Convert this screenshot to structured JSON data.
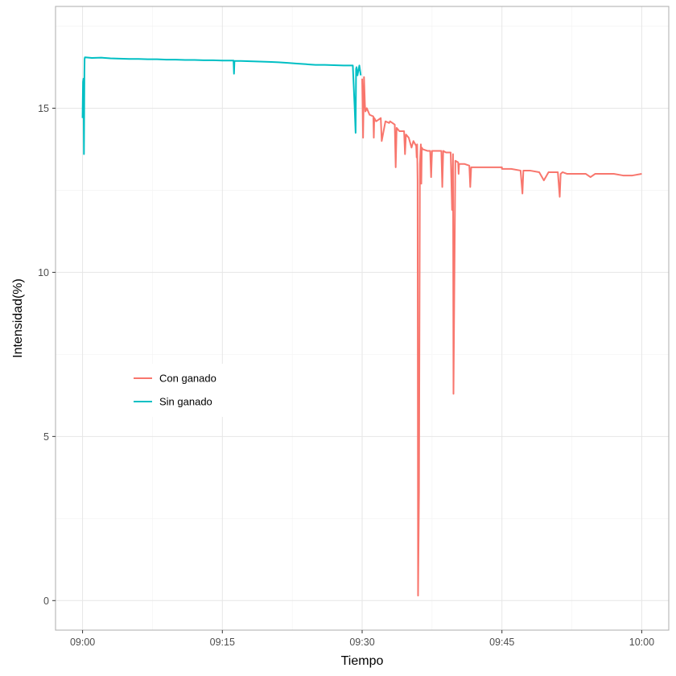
{
  "chart_data": {
    "type": "line",
    "xlabel": "Tiempo",
    "ylabel": "Intensidad(%)",
    "x_ticks": [
      "09:00",
      "09:15",
      "09:30",
      "09:45",
      "10:00"
    ],
    "x_tick_minutes": [
      0,
      15,
      30,
      45,
      60
    ],
    "xlim_minutes": [
      -2.9,
      62.9
    ],
    "y_ticks": [
      0,
      5,
      10,
      15
    ],
    "ylim": [
      -0.9,
      18.1
    ],
    "grid": true,
    "legend_position": "left-middle",
    "series": [
      {
        "name": "Sin ganado",
        "color": "#00BFC4",
        "x_minutes": [
          0.0,
          0.05,
          0.1,
          0.15,
          0.2,
          0.22,
          0.25,
          0.3,
          1,
          2,
          3,
          4,
          5,
          6,
          7,
          8,
          9,
          10,
          11,
          12,
          13,
          14,
          15,
          16,
          16.2,
          16.25,
          16.3,
          17,
          18,
          19,
          20,
          21,
          22,
          23,
          24,
          24.5,
          25,
          26,
          27,
          28,
          28.5,
          29,
          29.2,
          29.3,
          29.35,
          29.4,
          29.5,
          29.7,
          29.85
        ],
        "values": [
          14.7,
          15.8,
          15.9,
          13.6,
          16.1,
          16.5,
          16.55,
          16.55,
          16.53,
          16.54,
          16.52,
          16.51,
          16.5,
          16.5,
          16.49,
          16.49,
          16.48,
          16.48,
          16.47,
          16.47,
          16.46,
          16.46,
          16.45,
          16.45,
          16.45,
          16.05,
          16.44,
          16.44,
          16.43,
          16.42,
          16.41,
          16.4,
          16.38,
          16.36,
          16.34,
          16.33,
          16.32,
          16.32,
          16.31,
          16.3,
          16.3,
          16.3,
          15.0,
          14.25,
          16.2,
          16.25,
          16.0,
          16.3,
          16.0
        ]
      },
      {
        "name": "Con ganado",
        "color": "#F8766D",
        "x_minutes": [
          30.0,
          30.1,
          30.2,
          30.3,
          30.35,
          30.5,
          30.8,
          31.2,
          31.25,
          31.3,
          31.5,
          32,
          32.1,
          32.5,
          32.9,
          33,
          33.5,
          33.6,
          33.7,
          34,
          34.5,
          34.6,
          34.7,
          35,
          35.3,
          35.5,
          35.7,
          35.8,
          35.85,
          35.9,
          35.95,
          36.0,
          36.1,
          36.2,
          36.3,
          36.35,
          36.4,
          36.5,
          37,
          37.3,
          37.4,
          37.5,
          38,
          38.5,
          38.6,
          38.7,
          39,
          39.5,
          39.65,
          39.75,
          39.8,
          40,
          40.3,
          40.35,
          40.4,
          40.5,
          41,
          41.5,
          41.6,
          41.7,
          42,
          43,
          44,
          45,
          45,
          46,
          47,
          47.2,
          47.3,
          47.5,
          48,
          49,
          49.5,
          50,
          51,
          51.2,
          51.3,
          51.5,
          52,
          53,
          54,
          54.5,
          55,
          56,
          57,
          58,
          59,
          60
        ],
        "values": [
          15.9,
          14.1,
          15.95,
          15.1,
          14.9,
          15.0,
          14.8,
          14.75,
          14.1,
          14.7,
          14.6,
          14.7,
          14.0,
          14.6,
          14.55,
          14.6,
          14.5,
          13.2,
          14.4,
          14.3,
          14.3,
          13.6,
          14.2,
          14.1,
          13.8,
          14.0,
          13.9,
          13.85,
          13.5,
          13.9,
          12.8,
          0.15,
          3.3,
          13.3,
          13.9,
          12.7,
          13.8,
          13.75,
          13.7,
          13.7,
          12.9,
          13.7,
          13.7,
          13.7,
          12.6,
          13.7,
          13.65,
          13.65,
          11.9,
          13.6,
          6.3,
          13.4,
          13.35,
          13.0,
          13.3,
          13.3,
          13.3,
          13.25,
          12.6,
          13.2,
          13.2,
          13.2,
          13.2,
          13.2,
          13.15,
          13.15,
          13.1,
          12.4,
          13.1,
          13.1,
          13.1,
          13.05,
          12.8,
          13.05,
          13.05,
          12.3,
          13.0,
          13.05,
          13.0,
          13.0,
          13.0,
          12.9,
          13.0,
          13.0,
          13.0,
          12.95,
          12.95,
          13.0
        ]
      }
    ]
  }
}
